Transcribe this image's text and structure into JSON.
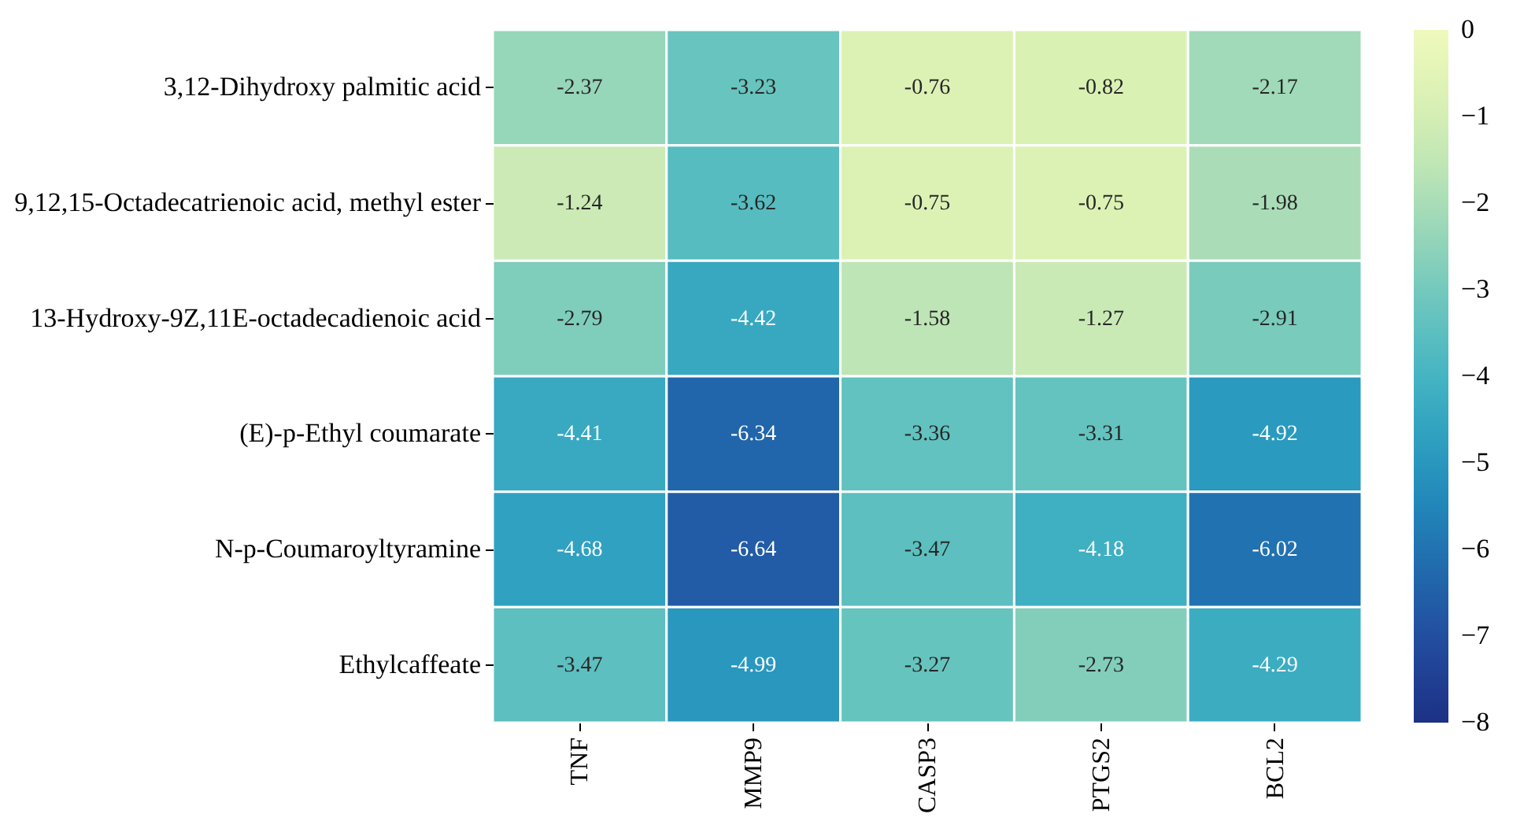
{
  "chart_data": {
    "type": "heatmap",
    "categories": [
      "TNF",
      "MMP9",
      "CASP3",
      "PTGS2",
      "BCL2"
    ],
    "y_categories": [
      "3,12-Dihydroxy palmitic acid",
      "9,12,15-Octadecatrienoic acid, methyl ester",
      "13-Hydroxy-9Z,11E-octadecadienoic acid",
      "(E)-p-Ethyl coumarate",
      "N-p-Coumaroyltyramine",
      "Ethylcaffeate"
    ],
    "cells": [
      [
        -2.37,
        -3.23,
        -0.76,
        -0.82,
        -2.17
      ],
      [
        -1.24,
        -3.62,
        -0.75,
        -0.75,
        -1.98
      ],
      [
        -2.79,
        -4.42,
        -1.58,
        -1.27,
        -2.91
      ],
      [
        -4.41,
        -6.34,
        -3.36,
        -3.31,
        -4.92
      ],
      [
        -4.68,
        -6.64,
        -3.47,
        -4.18,
        -6.02
      ],
      [
        -3.47,
        -4.99,
        -3.27,
        -2.73,
        -4.29
      ]
    ],
    "data_labels": true,
    "clim": [
      -8,
      0
    ],
    "cticks": [
      0,
      {
        "value": -1,
        "label": "−1"
      },
      {
        "value": -2,
        "label": "−2"
      },
      {
        "value": -3,
        "label": "−3"
      },
      {
        "value": -4,
        "label": "−4"
      },
      {
        "value": -5,
        "label": "−5"
      },
      {
        "value": -6,
        "label": "−6"
      },
      {
        "value": -7,
        "label": "−7"
      },
      {
        "value": -8,
        "label": "−8"
      }
    ]
  }
}
